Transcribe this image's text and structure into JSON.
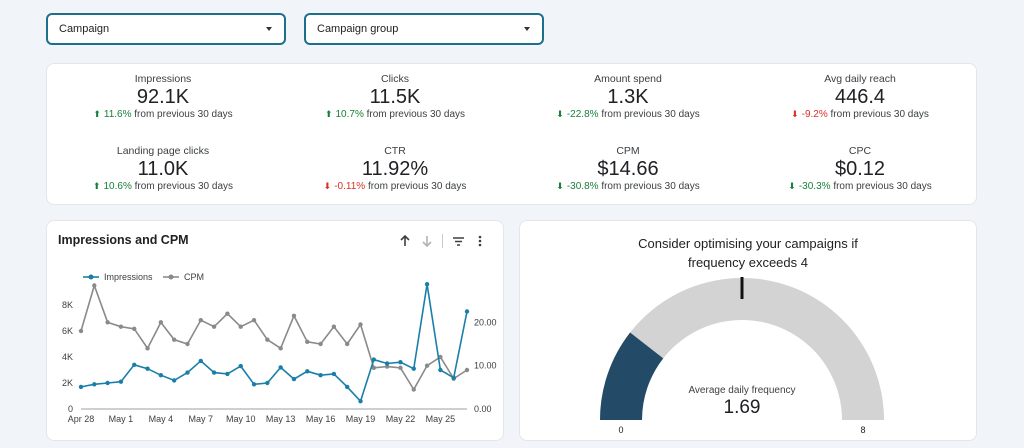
{
  "filters": {
    "campaign": "Campaign",
    "campaign_group": "Campaign group"
  },
  "kpis": [
    {
      "name": "Impressions",
      "value": "92.1K",
      "direction": "up",
      "good": true,
      "delta": "11.6%",
      "suffix": "from previous 30 days"
    },
    {
      "name": "Clicks",
      "value": "11.5K",
      "direction": "up",
      "good": true,
      "delta": "10.7%",
      "suffix": "from previous 30 days"
    },
    {
      "name": "Amount spend",
      "value": "1.3K",
      "direction": "down",
      "good": true,
      "delta": "-22.8%",
      "suffix": "from previous 30 days"
    },
    {
      "name": "Avg daily reach",
      "value": "446.4",
      "direction": "down",
      "good": false,
      "delta": "-9.2%",
      "suffix": "from previous 30 days"
    },
    {
      "name": "Landing page clicks",
      "value": "11.0K",
      "direction": "up",
      "good": true,
      "delta": "10.6%",
      "suffix": "from previous 30 days"
    },
    {
      "name": "CTR",
      "value": "11.92%",
      "direction": "down",
      "good": false,
      "delta": "-0.11%",
      "suffix": "from previous 30 days"
    },
    {
      "name": "CPM",
      "value": "$14.66",
      "direction": "down",
      "good": true,
      "delta": "-30.8%",
      "suffix": "from previous 30 days"
    },
    {
      "name": "CPC",
      "value": "$0.12",
      "direction": "down",
      "good": true,
      "delta": "-30.3%",
      "suffix": "from previous 30 days"
    }
  ],
  "colors": {
    "impressions": "#1a7fa8",
    "cpm": "#8a8a8a",
    "positive": "#188038",
    "negative": "#d93025",
    "gauge_fill": "#234a66",
    "gauge_track": "#d3d3d3"
  },
  "chart_data": [
    {
      "type": "line",
      "title": "Impressions and CPM",
      "x": [
        "Apr 28",
        "Apr 29",
        "Apr 30",
        "May 1",
        "May 2",
        "May 3",
        "May 4",
        "May 5",
        "May 6",
        "May 7",
        "May 8",
        "May 9",
        "May 10",
        "May 11",
        "May 12",
        "May 13",
        "May 14",
        "May 15",
        "May 16",
        "May 17",
        "May 18",
        "May 19",
        "May 20",
        "May 21",
        "May 22",
        "May 23",
        "May 24",
        "May 25",
        "May 26",
        "May 27"
      ],
      "x_tick_labels": [
        "Apr 28",
        "May 1",
        "May 4",
        "May 7",
        "May 10",
        "May 13",
        "May 16",
        "May 19",
        "May 22",
        "May 25"
      ],
      "series": [
        {
          "name": "Impressions",
          "axis": "left",
          "values": [
            1700,
            1900,
            2000,
            2100,
            3400,
            3100,
            2600,
            2200,
            2800,
            3700,
            2800,
            2700,
            3300,
            1900,
            2000,
            3200,
            2300,
            2900,
            2600,
            2700,
            1700,
            600,
            3800,
            3500,
            3600,
            3100,
            9600,
            3000,
            2400,
            7500
          ]
        },
        {
          "name": "CPM",
          "axis": "right",
          "values": [
            18.0,
            28.5,
            20.0,
            19.0,
            18.5,
            14.0,
            20.0,
            16.0,
            15.0,
            20.5,
            19.0,
            22.0,
            19.0,
            20.5,
            16.0,
            14.0,
            21.5,
            15.5,
            15.0,
            19.0,
            15.0,
            19.5,
            9.5,
            9.8,
            9.5,
            4.5,
            10.0,
            12.0,
            7.0,
            9.0
          ]
        }
      ],
      "left_axis": {
        "ticks": [
          "0",
          "2K",
          "4K",
          "6K",
          "8K"
        ],
        "range": [
          0,
          10000
        ]
      },
      "right_axis": {
        "ticks": [
          "0.00",
          "10.00",
          "20.00"
        ],
        "range": [
          0,
          30
        ]
      },
      "legend": "top-left"
    },
    {
      "type": "gauge",
      "title": "Consider optimising your campaigns if frequency exceeds 4",
      "label": "Average daily frequency",
      "value": 1.69,
      "value_text": "1.69",
      "min": 0,
      "max": 8,
      "min_label": "0",
      "max_label": "8",
      "target": 4
    }
  ]
}
